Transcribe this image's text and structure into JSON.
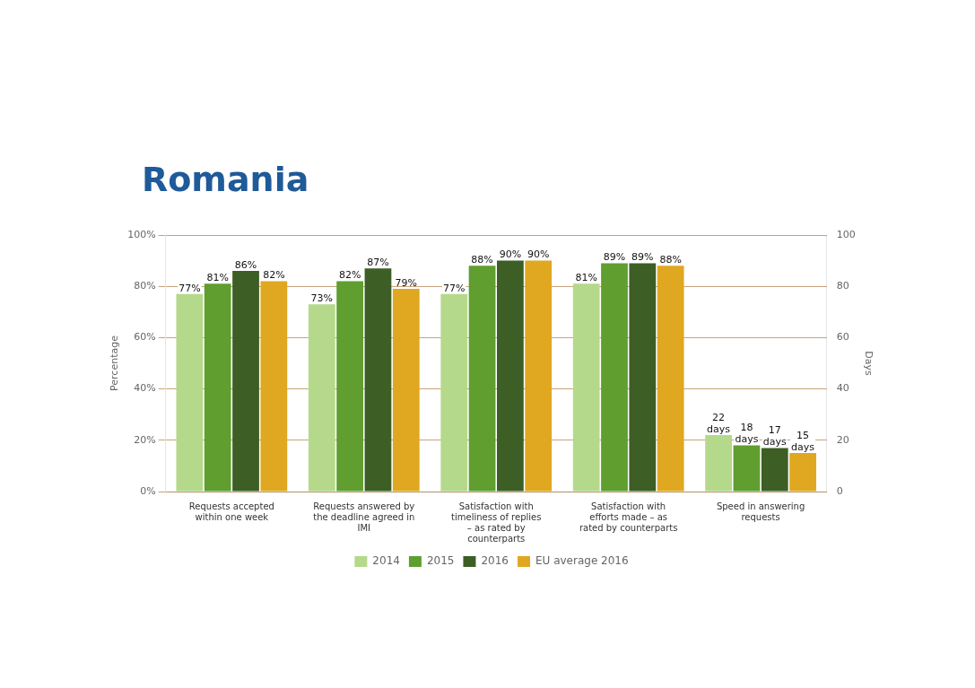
{
  "chart_data": {
    "type": "bar",
    "title": "Romania",
    "categories": [
      "Requests accepted within one week",
      "Requests answered by the deadline agreed in IMI",
      "Satisfaction with timeliness of replies – as rated by counterparts",
      "Satisfaction with efforts made – as rated by counterparts",
      "Speed in answering requests"
    ],
    "series": [
      {
        "name": "2014",
        "color": "#b5d98a",
        "values": [
          77,
          73,
          77,
          81,
          22
        ],
        "value_labels": [
          "77%",
          "73%",
          "77%",
          "81%",
          "22 days"
        ]
      },
      {
        "name": "2015",
        "color": "#5f9e2f",
        "values": [
          81,
          82,
          88,
          89,
          18
        ],
        "value_labels": [
          "81%",
          "82%",
          "88%",
          "89%",
          "18 days"
        ]
      },
      {
        "name": "2016",
        "color": "#3d5e25",
        "values": [
          86,
          87,
          90,
          89,
          17
        ],
        "value_labels": [
          "86%",
          "87%",
          "90%",
          "89%",
          "17 days"
        ]
      },
      {
        "name": "EU average 2016",
        "color": "#e0a820",
        "values": [
          82,
          79,
          90,
          88,
          15
        ],
        "value_labels": [
          "82%",
          "79%",
          "90%",
          "88%",
          "15 days"
        ]
      }
    ],
    "ylabel": "Percentage",
    "y2label": "Days",
    "ylim": [
      0,
      100
    ],
    "yticks": [
      {
        "value": 0,
        "label": "0%"
      },
      {
        "value": 20,
        "label": "20%"
      },
      {
        "value": 40,
        "label": "40%"
      },
      {
        "value": 60,
        "label": "60%"
      },
      {
        "value": 80,
        "label": "80%"
      },
      {
        "value": 100,
        "label": "100%"
      }
    ],
    "y2lim": [
      0,
      100
    ],
    "y2ticks": [
      0,
      20,
      40,
      60,
      80,
      100
    ],
    "grid": "y",
    "legend": "bottom"
  }
}
